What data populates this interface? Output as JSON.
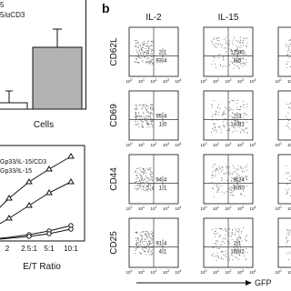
{
  "panel_a": {
    "legend_top": [
      "5",
      "5/αCD3"
    ],
    "bar_x_label": "Cells",
    "legend_bottom": [
      "Gp33/IL-15/CD3",
      "Gp33/IL-15"
    ],
    "x_ticks": [
      "2",
      "2.5:1",
      "5:1",
      "10:1"
    ],
    "x_label": "E/T Ratio"
  },
  "panel_b": {
    "label": "b",
    "columns": [
      "IL-2",
      "IL-15",
      "IL-"
    ],
    "rows": [
      {
        "label": "CD62L",
        "plots": [
          [
            "2",
            "1",
            "93",
            "4"
          ],
          [
            "12",
            "80",
            "3",
            "5"
          ]
        ]
      },
      {
        "label": "CD69",
        "plots": [
          [
            "95",
            "4",
            "1",
            "0"
          ],
          [
            "2",
            "3",
            "14",
            "81"
          ]
        ]
      },
      {
        "label": "CD44",
        "plots": [
          [
            "94",
            "4",
            "1",
            "1"
          ],
          [
            "8",
            "24",
            "8",
            "60"
          ]
        ]
      },
      {
        "label": "CD25",
        "plots": [
          [
            "91",
            "4",
            "4",
            "1"
          ],
          [
            "2",
            "1",
            "16",
            "82"
          ]
        ]
      }
    ],
    "tick_base": "10",
    "axis_ticks": [
      "0",
      "1",
      "2",
      "3",
      "4"
    ],
    "x_axis": "GFP"
  }
}
